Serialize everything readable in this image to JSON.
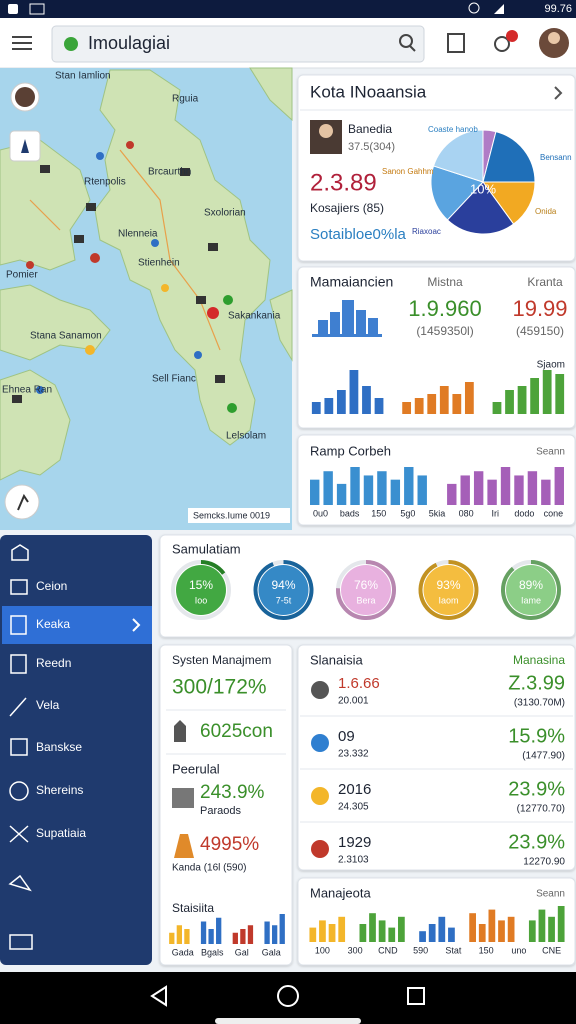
{
  "status_bar": {
    "time": "99.76"
  },
  "app_bar": {
    "search": "Imoulagiai"
  },
  "map": {
    "labels": [
      "Stan Iamlion",
      "Rguia",
      "Brcaurthn",
      "Rtenpolis",
      "Sxolorian",
      "Nlenneia",
      "Stienhein",
      "Pomier",
      "Sakankania",
      "Stana Sanamon",
      "Sell Fianc",
      "Ehnea Ran",
      "Lelsolam"
    ],
    "attribution": "Semcks.Iume 0019"
  },
  "overview_card": {
    "title": "Kota INoaansia",
    "person": "Banedia",
    "person_sub": "37.5(304)",
    "value": "2.3.89",
    "caption": "Kosajiers (85)",
    "link": "Sotaibloe0%la",
    "pie": {
      "type": "pie",
      "center_label": "10%",
      "slices": [
        {
          "name": null,
          "value": 4,
          "color": "#b07cc6"
        },
        {
          "name": "Bensann",
          "value": 21,
          "color": "#1f6fb8"
        },
        {
          "name": "Onida",
          "value": 15,
          "color": "#f2a922"
        },
        {
          "name": "Riaxoac",
          "value": 22,
          "color": "#2a3f9c"
        },
        {
          "name": "Sanon Gahhm",
          "value": 18,
          "color": "#5aa4e0"
        },
        {
          "name": "Coaste hanob",
          "value": 20,
          "color": "#a9d3f2"
        }
      ]
    }
  },
  "market_card": {
    "title": "Mamaiancien",
    "col1_label": "Mistna",
    "col1_value": "1.9.960",
    "col1_sub": "(1459350l)",
    "col2_label": "Kranta",
    "col2_value": "19.99",
    "col2_sub": "(459150)",
    "chart_label": "Sjaom",
    "chart": {
      "type": "bar",
      "series": [
        {
          "color": "#2f6fc4",
          "values": [
            3,
            4,
            6,
            11,
            7,
            4
          ]
        },
        {
          "color": "#e07b24",
          "values": [
            3,
            4,
            5,
            7,
            5,
            8
          ]
        },
        {
          "color": "#4da33a",
          "values": [
            3,
            6,
            7,
            9,
            11,
            10
          ]
        }
      ]
    }
  },
  "ramp_card": {
    "title": "Ramp Corbeh",
    "legend": "Seann",
    "axis_labels": [
      "0u0",
      "bads",
      "150",
      "5g0",
      "5kia",
      "080",
      "Iri",
      "dodo",
      "cone"
    ],
    "chart": {
      "type": "bar",
      "series": [
        {
          "color": "#3a8fd0",
          "values": [
            6,
            8,
            5,
            9,
            7,
            8,
            6,
            9,
            7
          ]
        },
        {
          "color": "#a55fb8",
          "values": [
            5,
            7,
            8,
            6,
            9,
            7,
            8,
            6,
            9
          ]
        }
      ]
    }
  },
  "sidebar": {
    "items": [
      "Ceion",
      "Keaka",
      "Reedn",
      "Vela",
      "Banskse",
      "Shereins",
      "Supatiaia"
    ]
  },
  "simulation_card": {
    "title": "Samulatiam",
    "gauges": [
      {
        "value": 15,
        "label": "15%",
        "sub": "Ioo",
        "color": "#2e9e2e"
      },
      {
        "value": 94,
        "label": "94%",
        "sub": "7-5t",
        "color": "#1f7cc0"
      },
      {
        "value": 76,
        "label": "76%",
        "sub": "Bera",
        "color": "#e6a9dc"
      },
      {
        "value": 93,
        "label": "93%",
        "sub": "Iaom",
        "color": "#f3b62a"
      },
      {
        "value": 89,
        "label": "89%",
        "sub": "Iame",
        "color": "#7fc97a"
      }
    ]
  },
  "system_card": {
    "title": "Systen Manajmem",
    "headline": "300/172%",
    "stat": "6025con",
    "section": "Peerulal",
    "items": [
      {
        "value": "243.9%",
        "sub": "Paraods"
      },
      {
        "value": "4995%",
        "sub": "Kanda (16l (590)"
      }
    ],
    "chart_title": "Staisiita",
    "axis_labels": [
      "Gada",
      "Bgals",
      "Gal",
      "Gala"
    ],
    "chart": {
      "type": "bar",
      "series": [
        {
          "color": "#f3b62a",
          "values": [
            3,
            5,
            4
          ]
        },
        {
          "color": "#2f6fc4",
          "values": [
            6,
            4,
            7
          ]
        },
        {
          "color": "#c0392b",
          "values": [
            3,
            4,
            5
          ]
        },
        {
          "color": "#2f6fc4",
          "values": [
            6,
            5,
            8
          ]
        }
      ]
    }
  },
  "stats_card": {
    "title": "Slanaisia",
    "legend": "Manasina",
    "rows": [
      {
        "name": "1.6.66",
        "sub": "20.001",
        "value": "Z.3.99",
        "value_sub": "(3130.70M)"
      },
      {
        "name": "09",
        "sub": "23.332",
        "value": "15.9%",
        "value_sub": "(1477.90)"
      },
      {
        "name": "2016",
        "sub": "24.305",
        "value": "23.9%",
        "value_sub": "(12770.70)"
      },
      {
        "name": "1929",
        "sub": "2.3103",
        "value": "23.9%",
        "value_sub": "12270.90"
      }
    ]
  },
  "bottom_card": {
    "title": "Manajeota",
    "legend": "Seann",
    "axis_labels": [
      "100",
      "300",
      "CND",
      "590",
      "Stat",
      "150",
      "uno",
      "CNE"
    ],
    "chart": {
      "type": "bar",
      "series": [
        {
          "color": "#f3b62a",
          "values": [
            4,
            6,
            5,
            7
          ]
        },
        {
          "color": "#4da33a",
          "values": [
            5,
            8,
            6,
            4,
            7
          ]
        },
        {
          "color": "#2f6fc4",
          "values": [
            3,
            5,
            7,
            4
          ]
        },
        {
          "color": "#e07b24",
          "values": [
            8,
            5,
            9,
            6,
            7
          ]
        },
        {
          "color": "#4da33a",
          "values": [
            6,
            9,
            7,
            10
          ]
        }
      ]
    }
  }
}
